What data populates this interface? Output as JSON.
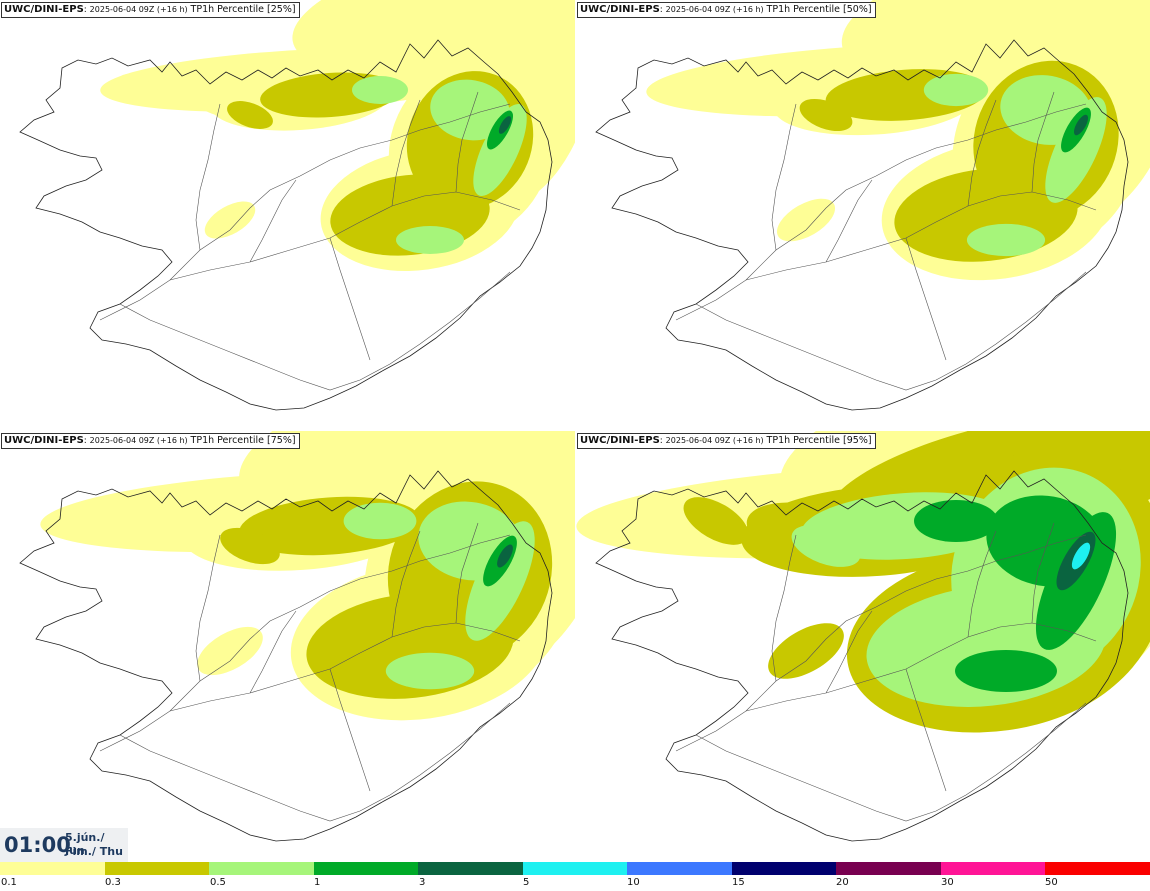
{
  "panels": [
    {
      "model": "UWC/DINI-EPS",
      "run": "2025-06-04 09Z (+16 h)",
      "field": "TP1h Percentile [25%]"
    },
    {
      "model": "UWC/DINI-EPS",
      "run": "2025-06-04 09Z (+16 h)",
      "field": "TP1h Percentile [50%]"
    },
    {
      "model": "UWC/DINI-EPS",
      "run": "2025-06-04 09Z (+16 h)",
      "field": "TP1h Percentile [75%]"
    },
    {
      "model": "UWC/DINI-EPS",
      "run": "2025-06-04 09Z (+16 h)",
      "field": "TP1h Percentile [95%]"
    }
  ],
  "valid_time": {
    "clock": "01:00",
    "date_line1": "5.jún./ Jun",
    "date_line2": "Fim./ Thu"
  },
  "legend": {
    "labels": [
      "0.1",
      "0.3",
      "0.5",
      "1",
      "3",
      "5",
      "10",
      "15",
      "20",
      "30",
      "50"
    ],
    "colors": [
      "#fefe96",
      "#c8c800",
      "#a6f57a",
      "#00aa28",
      "#0a6440",
      "#1ef0f0",
      "#3c78ff",
      "#00006e",
      "#780050",
      "#ff1496",
      "#fa0000"
    ]
  },
  "colors": {
    "land_outline": "#222222",
    "roads": "#555555",
    "background": "#ffffff"
  }
}
